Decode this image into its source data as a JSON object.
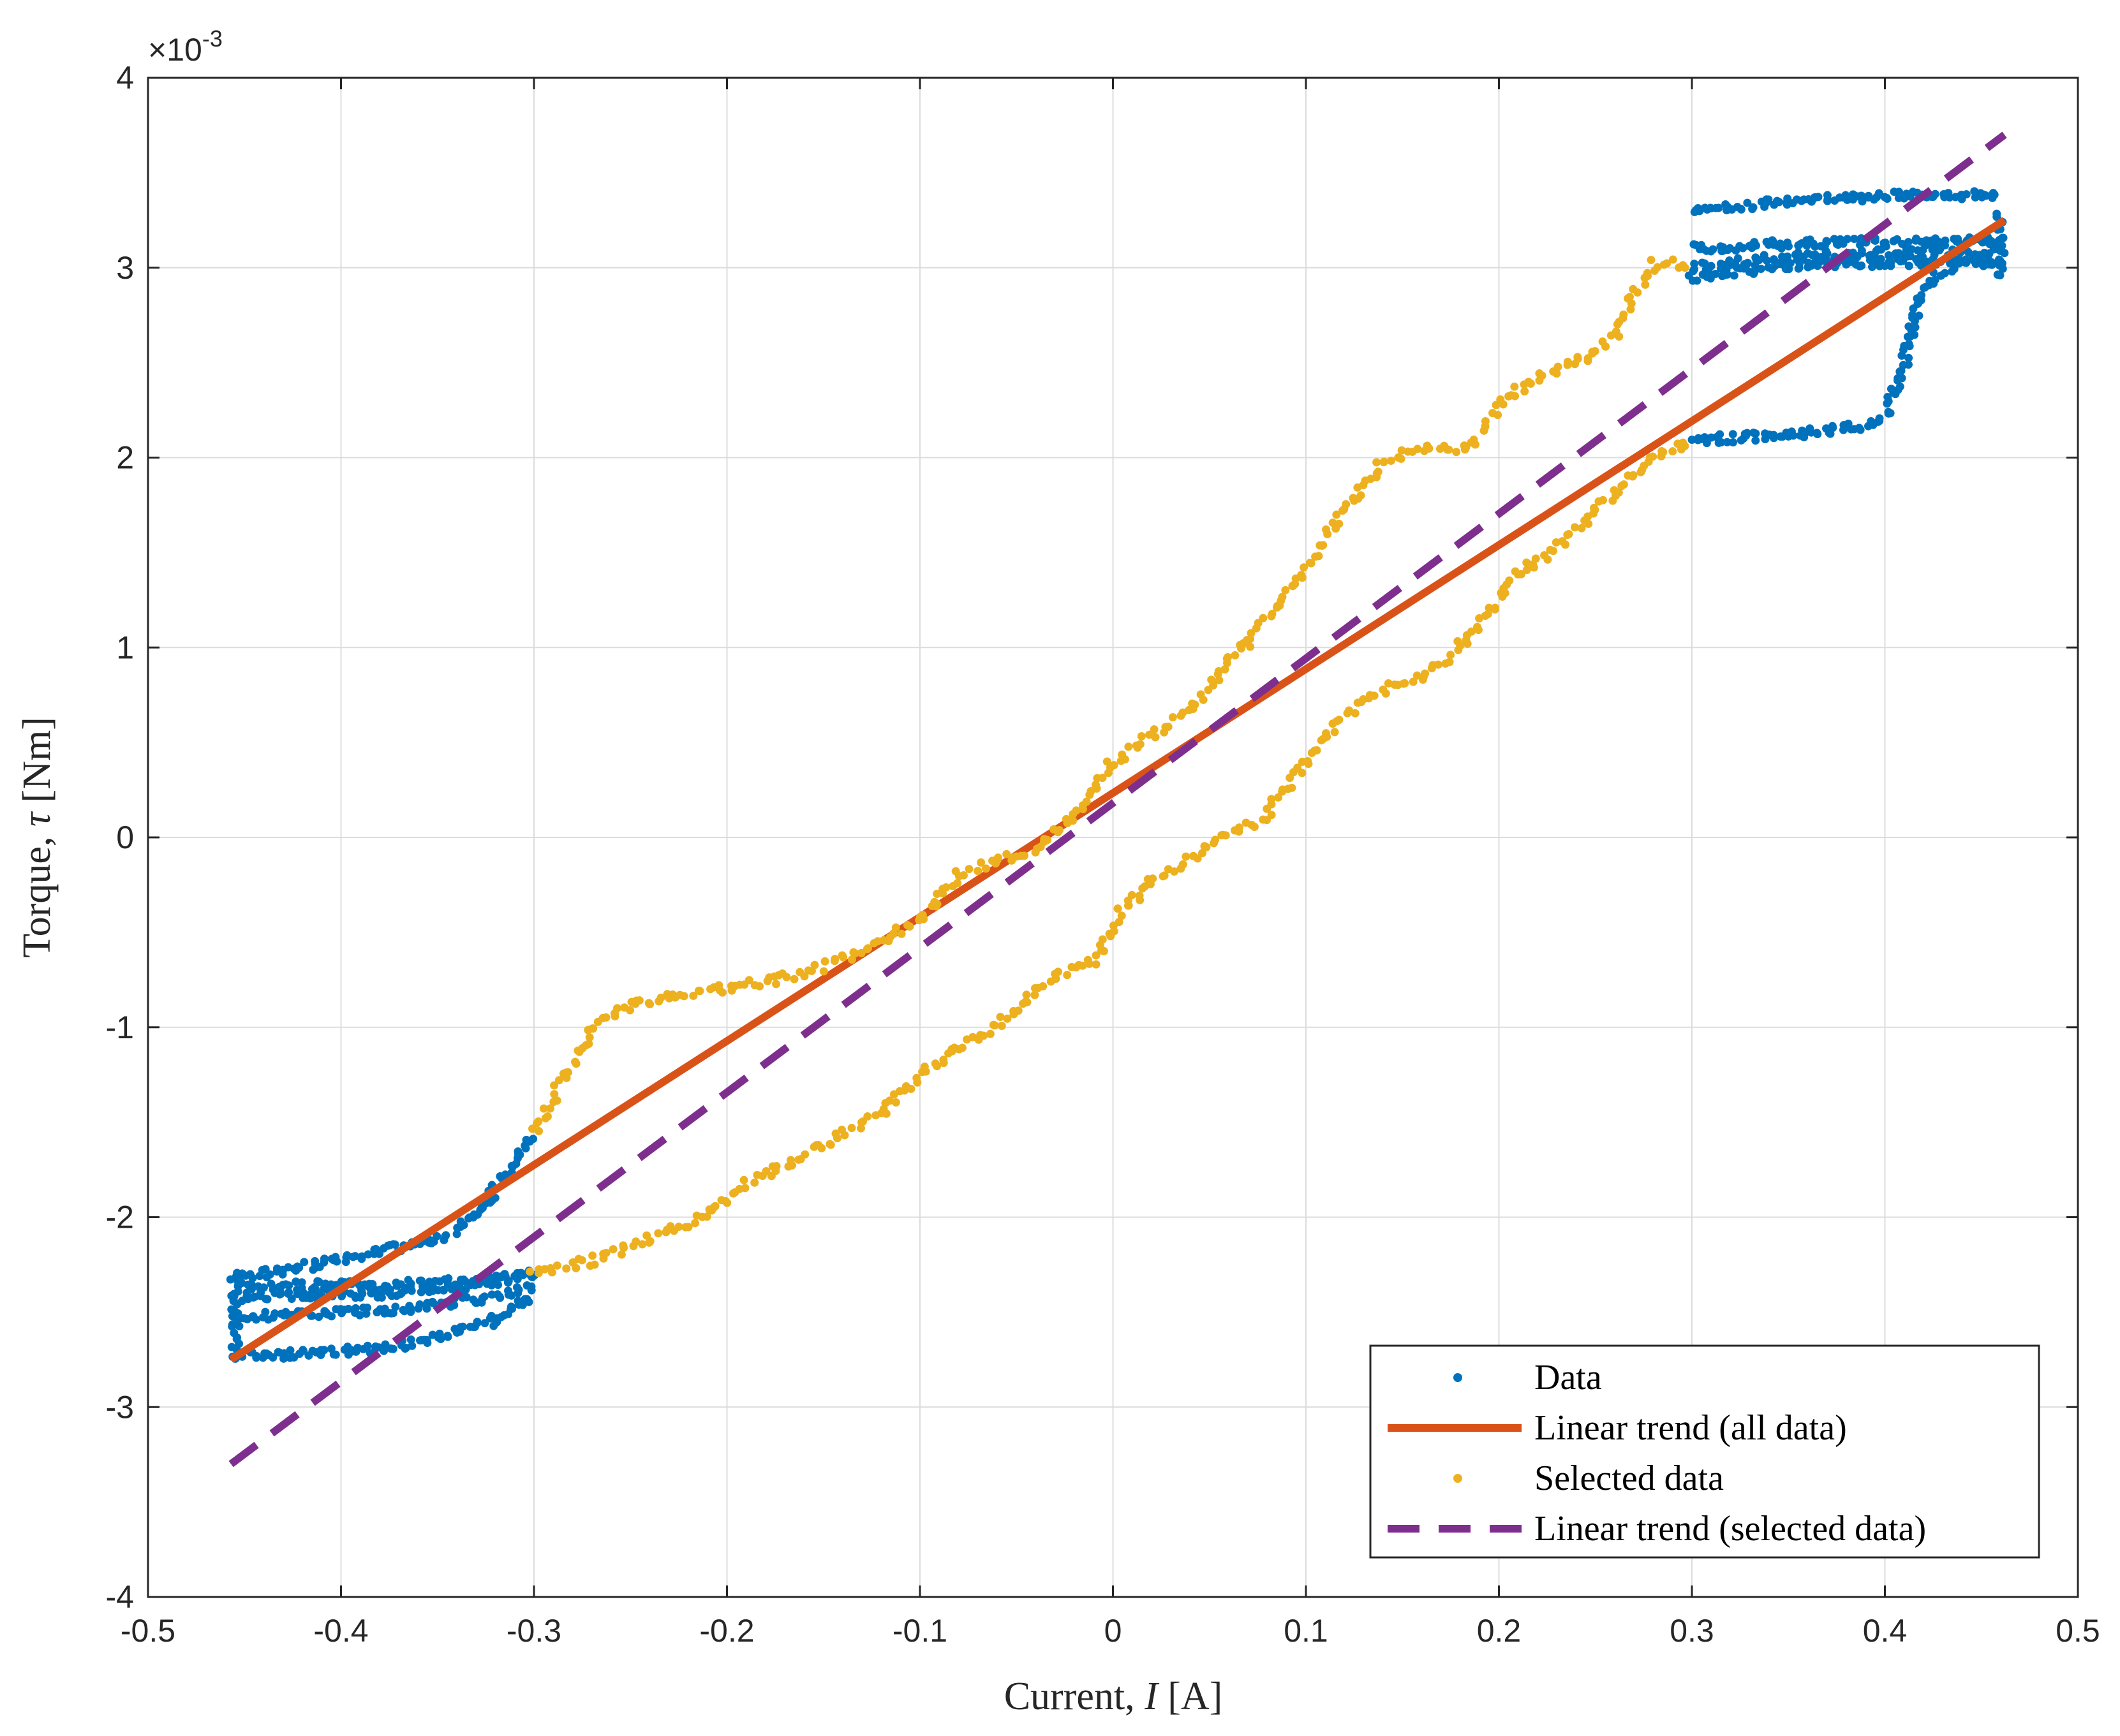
{
  "chart_data": {
    "type": "scatter",
    "title": "",
    "xlabel": "Current, I [A]",
    "xlabel_text": "Current, ",
    "xlabel_var": "I",
    "xlabel_unit": " [A]",
    "ylabel": "Torque, τ [Nm]",
    "ylabel_text": "Torque, ",
    "ylabel_var": "τ",
    "ylabel_unit": " [Nm]",
    "xlim": [
      -0.5,
      0.5
    ],
    "ylim": [
      -4,
      4
    ],
    "y_exponent_base": "×10",
    "y_exponent_power": "-3",
    "x_ticks": [
      -0.5,
      -0.4,
      -0.3,
      -0.2,
      -0.1,
      0,
      0.1,
      0.2,
      0.3,
      0.4,
      0.5
    ],
    "x_tick_labels": [
      "-0.5",
      "-0.4",
      "-0.3",
      "-0.2",
      "-0.1",
      "0",
      "0.1",
      "0.2",
      "0.3",
      "0.4",
      "0.5"
    ],
    "y_ticks": [
      -4,
      -3,
      -2,
      -1,
      0,
      1,
      2,
      3,
      4
    ],
    "y_tick_labels": [
      "-4",
      "-3",
      "-2",
      "-1",
      "0",
      "1",
      "2",
      "3",
      "4"
    ],
    "grid": true,
    "legend_position": "bottom-right",
    "series": [
      {
        "name": "Data",
        "kind": "scatter",
        "color": "#0072BD",
        "paths": [
          [
            [
              -0.455,
              -2.32
            ],
            [
              -0.43,
              -2.28
            ],
            [
              -0.4,
              -2.22
            ],
            [
              -0.37,
              -2.16
            ],
            [
              -0.345,
              -2.1
            ],
            [
              -0.33,
              -1.98
            ],
            [
              -0.318,
              -1.82
            ],
            [
              -0.307,
              -1.65
            ],
            [
              -0.3,
              -1.57
            ]
          ],
          [
            [
              -0.3,
              -2.3
            ],
            [
              -0.32,
              -2.33
            ],
            [
              -0.35,
              -2.35
            ],
            [
              -0.38,
              -2.36
            ],
            [
              -0.42,
              -2.36
            ],
            [
              -0.455,
              -2.36
            ]
          ],
          [
            [
              -0.455,
              -2.52
            ],
            [
              -0.42,
              -2.51
            ],
            [
              -0.38,
              -2.49
            ],
            [
              -0.35,
              -2.46
            ],
            [
              -0.32,
              -2.42
            ],
            [
              -0.3,
              -2.36
            ]
          ],
          [
            [
              -0.455,
              -2.42
            ],
            [
              -0.42,
              -2.41
            ],
            [
              -0.38,
              -2.4
            ],
            [
              -0.35,
              -2.38
            ],
            [
              -0.32,
              -2.34
            ],
            [
              -0.3,
              -2.3
            ]
          ],
          [
            [
              -0.455,
              -2.73
            ],
            [
              -0.42,
              -2.72
            ],
            [
              -0.38,
              -2.69
            ],
            [
              -0.35,
              -2.64
            ],
            [
              -0.32,
              -2.54
            ],
            [
              -0.3,
              -2.42
            ]
          ],
          [
            [
              -0.455,
              -2.28
            ],
            [
              -0.455,
              -2.75
            ]
          ],
          [
            [
              0.3,
              3.29
            ],
            [
              0.33,
              3.33
            ],
            [
              0.37,
              3.36
            ],
            [
              0.41,
              3.38
            ],
            [
              0.46,
              3.38
            ]
          ],
          [
            [
              0.3,
              3.1
            ],
            [
              0.34,
              3.12
            ],
            [
              0.38,
              3.13
            ],
            [
              0.42,
              3.14
            ],
            [
              0.46,
              3.14
            ]
          ],
          [
            [
              0.3,
              3.0
            ],
            [
              0.34,
              3.05
            ],
            [
              0.38,
              3.07
            ],
            [
              0.42,
              3.08
            ],
            [
              0.46,
              3.08
            ]
          ],
          [
            [
              0.3,
              2.95
            ],
            [
              0.34,
              3.0
            ],
            [
              0.38,
              3.02
            ],
            [
              0.42,
              3.03
            ],
            [
              0.46,
              3.03
            ]
          ],
          [
            [
              0.3,
              2.09
            ],
            [
              0.33,
              2.11
            ],
            [
              0.36,
              2.13
            ],
            [
              0.39,
              2.17
            ],
            [
              0.4,
              2.22
            ],
            [
              0.405,
              2.35
            ],
            [
              0.41,
              2.5
            ],
            [
              0.413,
              2.65
            ],
            [
              0.417,
              2.8
            ],
            [
              0.425,
              2.95
            ],
            [
              0.44,
              3.03
            ],
            [
              0.46,
              3.05
            ]
          ],
          [
            [
              0.46,
              2.95
            ],
            [
              0.46,
              3.3
            ]
          ]
        ]
      },
      {
        "name": "Linear trend (all data)",
        "kind": "line",
        "style": "solid",
        "color": "#D95319",
        "x": [
          -0.457,
          0.462
        ],
        "y": [
          -2.75,
          3.25
        ]
      },
      {
        "name": "Selected data",
        "kind": "scatter",
        "color": "#EDB120",
        "paths": [
          [
            [
              -0.3,
              -1.55
            ],
            [
              -0.285,
              -1.28
            ],
            [
              -0.27,
              -1.0
            ],
            [
              -0.25,
              -0.88
            ],
            [
              -0.22,
              -0.82
            ],
            [
              -0.19,
              -0.78
            ],
            [
              -0.16,
              -0.72
            ],
            [
              -0.13,
              -0.6
            ],
            [
              -0.1,
              -0.44
            ],
            [
              -0.08,
              -0.2
            ],
            [
              -0.06,
              -0.12
            ],
            [
              -0.04,
              -0.06
            ],
            [
              -0.02,
              0.12
            ],
            [
              0.0,
              0.4
            ],
            [
              0.02,
              0.55
            ],
            [
              0.04,
              0.66
            ],
            [
              0.06,
              0.92
            ],
            [
              0.08,
              1.15
            ],
            [
              0.1,
              1.42
            ],
            [
              0.12,
              1.72
            ],
            [
              0.14,
              1.98
            ],
            [
              0.16,
              2.05
            ],
            [
              0.185,
              2.05
            ],
            [
              0.2,
              2.28
            ],
            [
              0.22,
              2.42
            ],
            [
              0.24,
              2.5
            ],
            [
              0.26,
              2.64
            ],
            [
              0.27,
              2.85
            ],
            [
              0.28,
              3.02
            ],
            [
              0.3,
              3.02
            ]
          ],
          [
            [
              -0.3,
              -2.3
            ],
            [
              -0.27,
              -2.23
            ],
            [
              -0.24,
              -2.12
            ],
            [
              -0.21,
              -1.98
            ],
            [
              -0.19,
              -1.82
            ],
            [
              -0.17,
              -1.72
            ],
            [
              -0.15,
              -1.62
            ],
            [
              -0.12,
              -1.45
            ],
            [
              -0.1,
              -1.24
            ],
            [
              -0.07,
              -1.06
            ],
            [
              -0.05,
              -0.9
            ],
            [
              -0.03,
              -0.72
            ],
            [
              -0.01,
              -0.65
            ],
            [
              0.0,
              -0.45
            ],
            [
              0.02,
              -0.22
            ],
            [
              0.04,
              -0.12
            ],
            [
              0.06,
              0.02
            ],
            [
              0.08,
              0.12
            ],
            [
              0.1,
              0.4
            ],
            [
              0.12,
              0.65
            ],
            [
              0.14,
              0.78
            ],
            [
              0.17,
              0.9
            ],
            [
              0.19,
              1.12
            ],
            [
              0.21,
              1.38
            ],
            [
              0.24,
              1.62
            ],
            [
              0.26,
              1.82
            ],
            [
              0.28,
              2.02
            ],
            [
              0.3,
              2.08
            ]
          ]
        ]
      },
      {
        "name": "Linear trend (selected data)",
        "kind": "line",
        "style": "dashed",
        "color": "#7E2F8E",
        "x": [
          -0.457,
          0.462
        ],
        "y": [
          -3.3,
          3.7
        ]
      }
    ]
  }
}
